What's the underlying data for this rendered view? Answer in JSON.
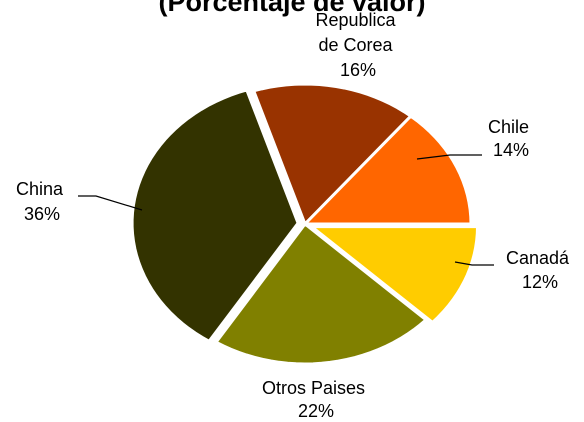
{
  "chart_data": {
    "type": "pie",
    "title": "(Porcentaje de valor)",
    "slices": [
      {
        "label_lines": [
          "Republica",
          "de Corea"
        ],
        "value": 16,
        "value_label": "16%",
        "color": "#993300"
      },
      {
        "label_lines": [
          "Chile"
        ],
        "value": 14,
        "value_label": "14%",
        "color": "#FF6600"
      },
      {
        "label_lines": [
          "Canadá"
        ],
        "value": 12,
        "value_label": "12%",
        "color": "#FFCC00"
      },
      {
        "label_lines": [
          "Otros Paises"
        ],
        "value": 22,
        "value_label": "22%",
        "color": "#808000"
      },
      {
        "label_lines": [
          "China"
        ],
        "value": 36,
        "value_label": "36%",
        "color": "#333300"
      }
    ]
  }
}
